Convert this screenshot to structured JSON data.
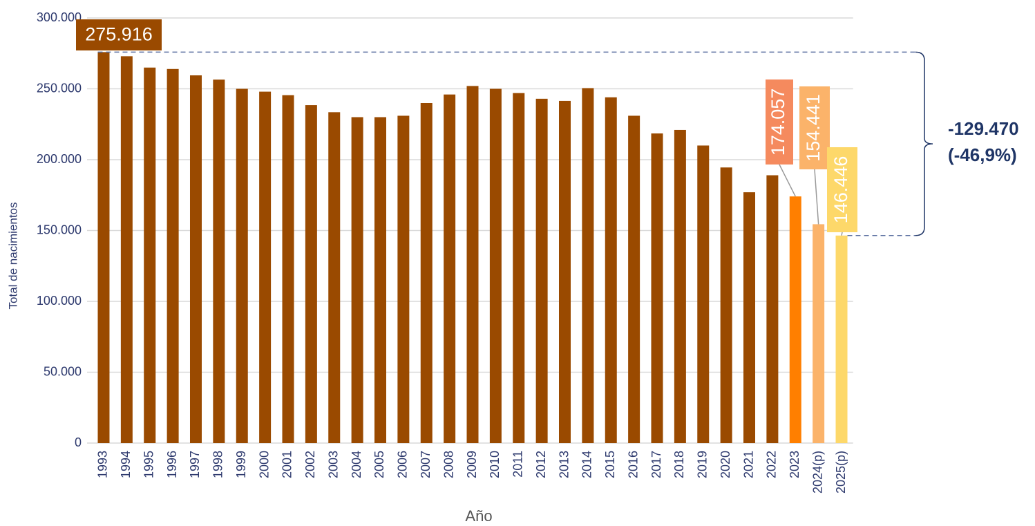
{
  "chart_data": {
    "type": "bar",
    "x_label": "Año",
    "y_label": "Total de nacimientos",
    "categories": [
      "1993",
      "1994",
      "1995",
      "1996",
      "1997",
      "1998",
      "1999",
      "2000",
      "2001",
      "2002",
      "2003",
      "2004",
      "2005",
      "2006",
      "2007",
      "2008",
      "2009",
      "2010",
      "2011",
      "2012",
      "2013",
      "2014",
      "2015",
      "2016",
      "2017",
      "2018",
      "2019",
      "2020",
      "2021",
      "2022",
      "2023",
      "2024(p)",
      "2025(p)"
    ],
    "values": [
      275916,
      273000,
      265000,
      264000,
      259500,
      256500,
      250000,
      248000,
      245500,
      238500,
      233500,
      230000,
      230000,
      231000,
      240000,
      246000,
      252000,
      250000,
      247000,
      243000,
      241500,
      250500,
      244000,
      231000,
      218500,
      221000,
      210000,
      194500,
      177000,
      189000,
      174057,
      154441,
      146446
    ],
    "value_labels": [
      "275.916",
      null,
      null,
      null,
      null,
      null,
      null,
      null,
      null,
      null,
      null,
      null,
      null,
      null,
      null,
      null,
      null,
      null,
      null,
      null,
      null,
      null,
      null,
      null,
      null,
      null,
      null,
      null,
      null,
      null,
      "174.057",
      "154.441",
      "146.446"
    ],
    "colors": [
      "#9a4a00",
      "#9a4a00",
      "#9a4a00",
      "#9a4a00",
      "#9a4a00",
      "#9a4a00",
      "#9a4a00",
      "#9a4a00",
      "#9a4a00",
      "#9a4a00",
      "#9a4a00",
      "#9a4a00",
      "#9a4a00",
      "#9a4a00",
      "#9a4a00",
      "#9a4a00",
      "#9a4a00",
      "#9a4a00",
      "#9a4a00",
      "#9a4a00",
      "#9a4a00",
      "#9a4a00",
      "#9a4a00",
      "#9a4a00",
      "#9a4a00",
      "#9a4a00",
      "#9a4a00",
      "#9a4a00",
      "#9a4a00",
      "#9a4a00",
      "#ff7f00",
      "#fbb36a",
      "#fdd86a"
    ],
    "label_colors": [
      "#9a4a00",
      null,
      null,
      null,
      null,
      null,
      null,
      null,
      null,
      null,
      null,
      null,
      null,
      null,
      null,
      null,
      null,
      null,
      null,
      null,
      null,
      null,
      null,
      null,
      null,
      null,
      null,
      null,
      null,
      null,
      "#f58a5e",
      "#fbb36a",
      "#fdd86a"
    ],
    "ylim": [
      0,
      300000
    ],
    "yticks": [
      0,
      {
        "value": 50000,
        "label": "50.000"
      },
      {
        "value": 100000,
        "label": "100.000"
      },
      {
        "value": 150000,
        "label": "150.000"
      },
      {
        "value": 200000,
        "label": "200.000"
      },
      {
        "value": 250000,
        "label": "250.000"
      },
      {
        "value": 300000,
        "label": "300.000"
      }
    ],
    "grid": true,
    "annotation": {
      "lines": [
        "-129.470",
        "(-46,9%)"
      ],
      "from": 0,
      "to": 32
    }
  }
}
